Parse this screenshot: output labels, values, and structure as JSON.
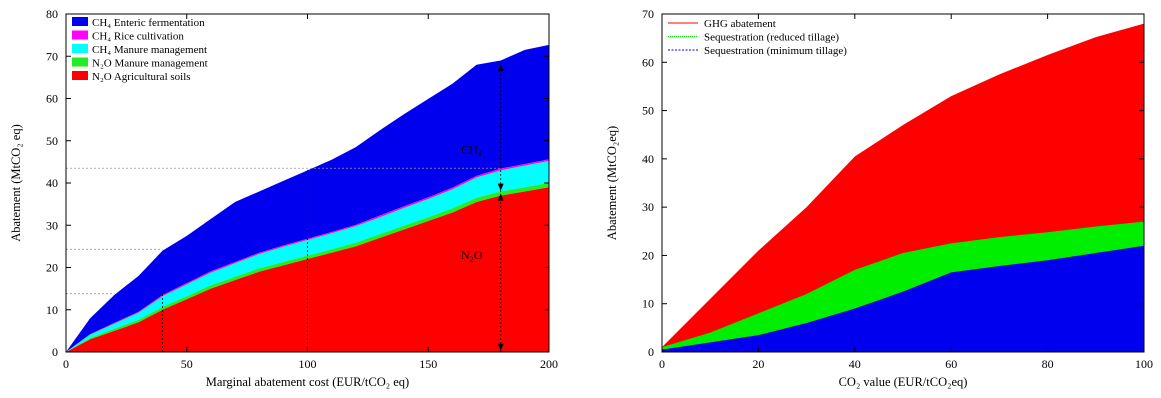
{
  "chart_data": [
    {
      "type": "area",
      "stacked": true,
      "xlabel": "Marginal abatement cost (EUR/tCO₂ eq)",
      "ylabel": "Abatement (MtCO₂ eq)",
      "xlim": [
        0,
        200
      ],
      "ylim": [
        0,
        80
      ],
      "xticks": [
        0,
        50,
        100,
        150,
        200
      ],
      "yticks": [
        0,
        10,
        20,
        30,
        40,
        50,
        60,
        70,
        80
      ],
      "legend_position": "top-left",
      "grid": false,
      "x": [
        0,
        10,
        20,
        30,
        40,
        50,
        60,
        70,
        80,
        90,
        100,
        110,
        120,
        130,
        140,
        150,
        160,
        170,
        180,
        190,
        200
      ],
      "series": [
        {
          "name": "N₂O Agricultural soils",
          "color": "#ff0000",
          "values": [
            0,
            3,
            5,
            7,
            10,
            12.5,
            15,
            17,
            19,
            20.5,
            22,
            23.5,
            25,
            27,
            29,
            31,
            33,
            35.5,
            37,
            38,
            39
          ]
        },
        {
          "name": "N₂O Manure management",
          "color": "#22ee22",
          "values": [
            0,
            0.3,
            0.5,
            0.6,
            0.7,
            0.7,
            0.8,
            0.8,
            0.8,
            0.8,
            0.8,
            0.8,
            0.9,
            0.9,
            0.9,
            0.9,
            1.0,
            1.0,
            1.0,
            1.0,
            1.0
          ]
        },
        {
          "name": "CH₄ Manure management",
          "color": "#00ffff",
          "values": [
            0,
            0.8,
            1.2,
            1.7,
            2.5,
            2.8,
            3.0,
            3.2,
            3.4,
            3.6,
            3.7,
            3.8,
            3.9,
            4.0,
            4.2,
            4.3,
            4.5,
            4.8,
            5.0,
            5.1,
            5.2
          ]
        },
        {
          "name": "CH₄ Rice cultivation",
          "color": "#ff00ff",
          "values": [
            0,
            0.1,
            0.2,
            0.2,
            0.3,
            0.3,
            0.3,
            0.3,
            0.3,
            0.3,
            0.3,
            0.3,
            0.3,
            0.4,
            0.4,
            0.4,
            0.4,
            0.4,
            0.4,
            0.4,
            0.4
          ]
        },
        {
          "name": "CH₄ Enteric fermentation",
          "color": "#0000ee",
          "values": [
            0,
            3.8,
            6.6,
            8.5,
            10.5,
            11.2,
            12.4,
            14.2,
            14.5,
            15.3,
            16.2,
            17.1,
            18.4,
            20.2,
            21.8,
            23.3,
            24.6,
            26.3,
            25.6,
            27.0,
            27.1
          ]
        }
      ],
      "reference_lines_y": [
        43.5,
        24.3,
        13.8
      ],
      "reference_lines_x": [
        40,
        100,
        180
      ],
      "annotations": [
        {
          "text": "CH₄",
          "x": 168,
          "y": 47
        },
        {
          "text": "N₂O",
          "x": 168,
          "y": 22
        }
      ]
    },
    {
      "type": "area",
      "stacked": false,
      "xlabel": "CO₂ value (EUR/tCO₂eq)",
      "ylabel": "Abatement (MtCO₂eq)",
      "xlim": [
        0,
        100
      ],
      "ylim": [
        0,
        70
      ],
      "xticks": [
        0,
        20,
        40,
        60,
        80,
        100
      ],
      "yticks": [
        0,
        10,
        20,
        30,
        40,
        50,
        60,
        70
      ],
      "legend_position": "top-left",
      "grid": false,
      "x": [
        0,
        10,
        20,
        30,
        40,
        50,
        60,
        70,
        80,
        90,
        100
      ],
      "series": [
        {
          "name": "GHG abatement",
          "color": "#ff0000",
          "values": [
            1,
            11,
            21,
            30,
            40.5,
            47,
            53,
            57.5,
            61.5,
            65.2,
            68
          ]
        },
        {
          "name": "Sequestration (reduced tillage)",
          "color": "#00ee00",
          "values": [
            1,
            4,
            8,
            12,
            17,
            20.5,
            22.5,
            23.8,
            24.8,
            26,
            27
          ]
        },
        {
          "name": "Sequestration (minimum tillage)",
          "color": "#0000ee",
          "values": [
            0.5,
            2,
            3.5,
            6,
            9,
            12.5,
            16.5,
            17.8,
            19,
            20.5,
            22
          ]
        }
      ]
    }
  ]
}
